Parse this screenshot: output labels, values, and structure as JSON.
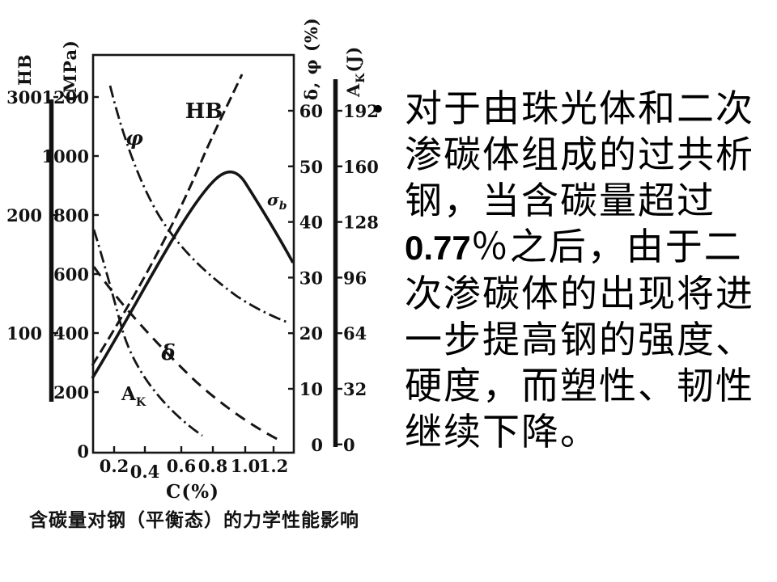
{
  "figure": {
    "caption": "含碳量对钢（平衡态）的力学性能影响",
    "x_axis": {
      "title": "C(%)",
      "ticks": [
        "0.2",
        "0.4",
        "0.6",
        "0.8",
        "1.0",
        "1.2"
      ]
    },
    "axis_hb": {
      "title": "HB",
      "ticks": [
        "300",
        "200",
        "100"
      ]
    },
    "axis_mpa": {
      "title": "(MPa)",
      "ticks": [
        "1200",
        "1000",
        "800",
        "600",
        "400",
        "200",
        "0"
      ]
    },
    "axis_delta_phi": {
      "title": "δ, φ (%)",
      "ticks": [
        "60",
        "50",
        "40",
        "30",
        "20",
        "10",
        "0"
      ]
    },
    "axis_ak": {
      "main": "A",
      "sub": "K",
      "unit": "(J)",
      "ticks": [
        "192",
        "160",
        "128",
        "96",
        "64",
        "32",
        "0"
      ]
    },
    "curve_labels": {
      "hb": "HB",
      "phi": "φ",
      "sigma_main": "σ",
      "sigma_sub": "b",
      "delta": "δ",
      "ak_main": "A",
      "ak_sub": "K"
    }
  },
  "text_panel": {
    "bullet": "•",
    "lines": [
      [
        {
          "t": "对于由珠光体和二次"
        }
      ],
      [
        {
          "t": "渗碳体组成的过共析"
        }
      ],
      [
        {
          "t": "钢，当含碳量超过"
        }
      ],
      [
        {
          "t": "0.77",
          "b": true
        },
        {
          "t": "％之后，由于二"
        }
      ],
      [
        {
          "t": "次渗碳体的出现将进"
        }
      ],
      [
        {
          "t": "一步提高钢的强度、"
        }
      ],
      [
        {
          "t": "硬度，而塑性、韧性"
        }
      ],
      [
        {
          "t": "继续下降。"
        }
      ]
    ]
  },
  "chart_data": {
    "type": "line",
    "title": "含碳量对钢（平衡态）的力学性能影响",
    "xlabel": "C(%)",
    "x_range": [
      0,
      1.3
    ],
    "x_ticks": [
      0.2,
      0.4,
      0.6,
      0.8,
      1.0,
      1.2
    ],
    "grid": false,
    "legend_position": "labels-on-curves",
    "axes": {
      "HB": {
        "side": "left",
        "label": "HB",
        "ticks": [
          300,
          200,
          100
        ]
      },
      "MPa": {
        "side": "left",
        "label": "(MPa)",
        "ticks": [
          1200,
          1000,
          800,
          600,
          400,
          200,
          0
        ]
      },
      "delta_phi_percent": {
        "side": "right",
        "label": "δ, φ (%)",
        "ticks": [
          60,
          50,
          40,
          30,
          20,
          10,
          0
        ]
      },
      "AK_J": {
        "side": "right",
        "label": "AK (J)",
        "ticks": [
          192,
          160,
          128,
          96,
          64,
          32,
          0
        ]
      }
    },
    "series": [
      {
        "name": "HB",
        "axis": "HB",
        "style": "dashed",
        "points": [
          [
            0,
            85
          ],
          [
            0.25,
            135
          ],
          [
            0.5,
            190
          ],
          [
            0.75,
            255
          ],
          [
            0.97,
            320
          ]
        ]
      },
      {
        "name": "σb",
        "axis": "MPa",
        "style": "solid",
        "points": [
          [
            0,
            250
          ],
          [
            0.3,
            500
          ],
          [
            0.55,
            750
          ],
          [
            0.85,
            950
          ],
          [
            1.0,
            900
          ],
          [
            1.3,
            640
          ]
        ]
      },
      {
        "name": "φ",
        "axis": "delta_phi_percent",
        "style": "dash-dot",
        "points": [
          [
            0.11,
            64
          ],
          [
            0.3,
            50
          ],
          [
            0.55,
            38
          ],
          [
            0.8,
            29
          ],
          [
            1.0,
            25
          ],
          [
            1.26,
            22
          ]
        ]
      },
      {
        "name": "δ",
        "axis": "delta_phi_percent",
        "style": "dashed",
        "points": [
          [
            0,
            32
          ],
          [
            0.25,
            24
          ],
          [
            0.5,
            17
          ],
          [
            0.75,
            10
          ],
          [
            1.0,
            5
          ],
          [
            1.22,
            1
          ]
        ]
      },
      {
        "name": "AK",
        "axis": "AK_J",
        "style": "dash-dot",
        "points": [
          [
            0,
            124
          ],
          [
            0.2,
            65
          ],
          [
            0.35,
            40
          ],
          [
            0.55,
            17
          ],
          [
            0.7,
            5
          ]
        ]
      }
    ]
  },
  "colors": {
    "ink": "#111111",
    "background": "#ffffff"
  }
}
